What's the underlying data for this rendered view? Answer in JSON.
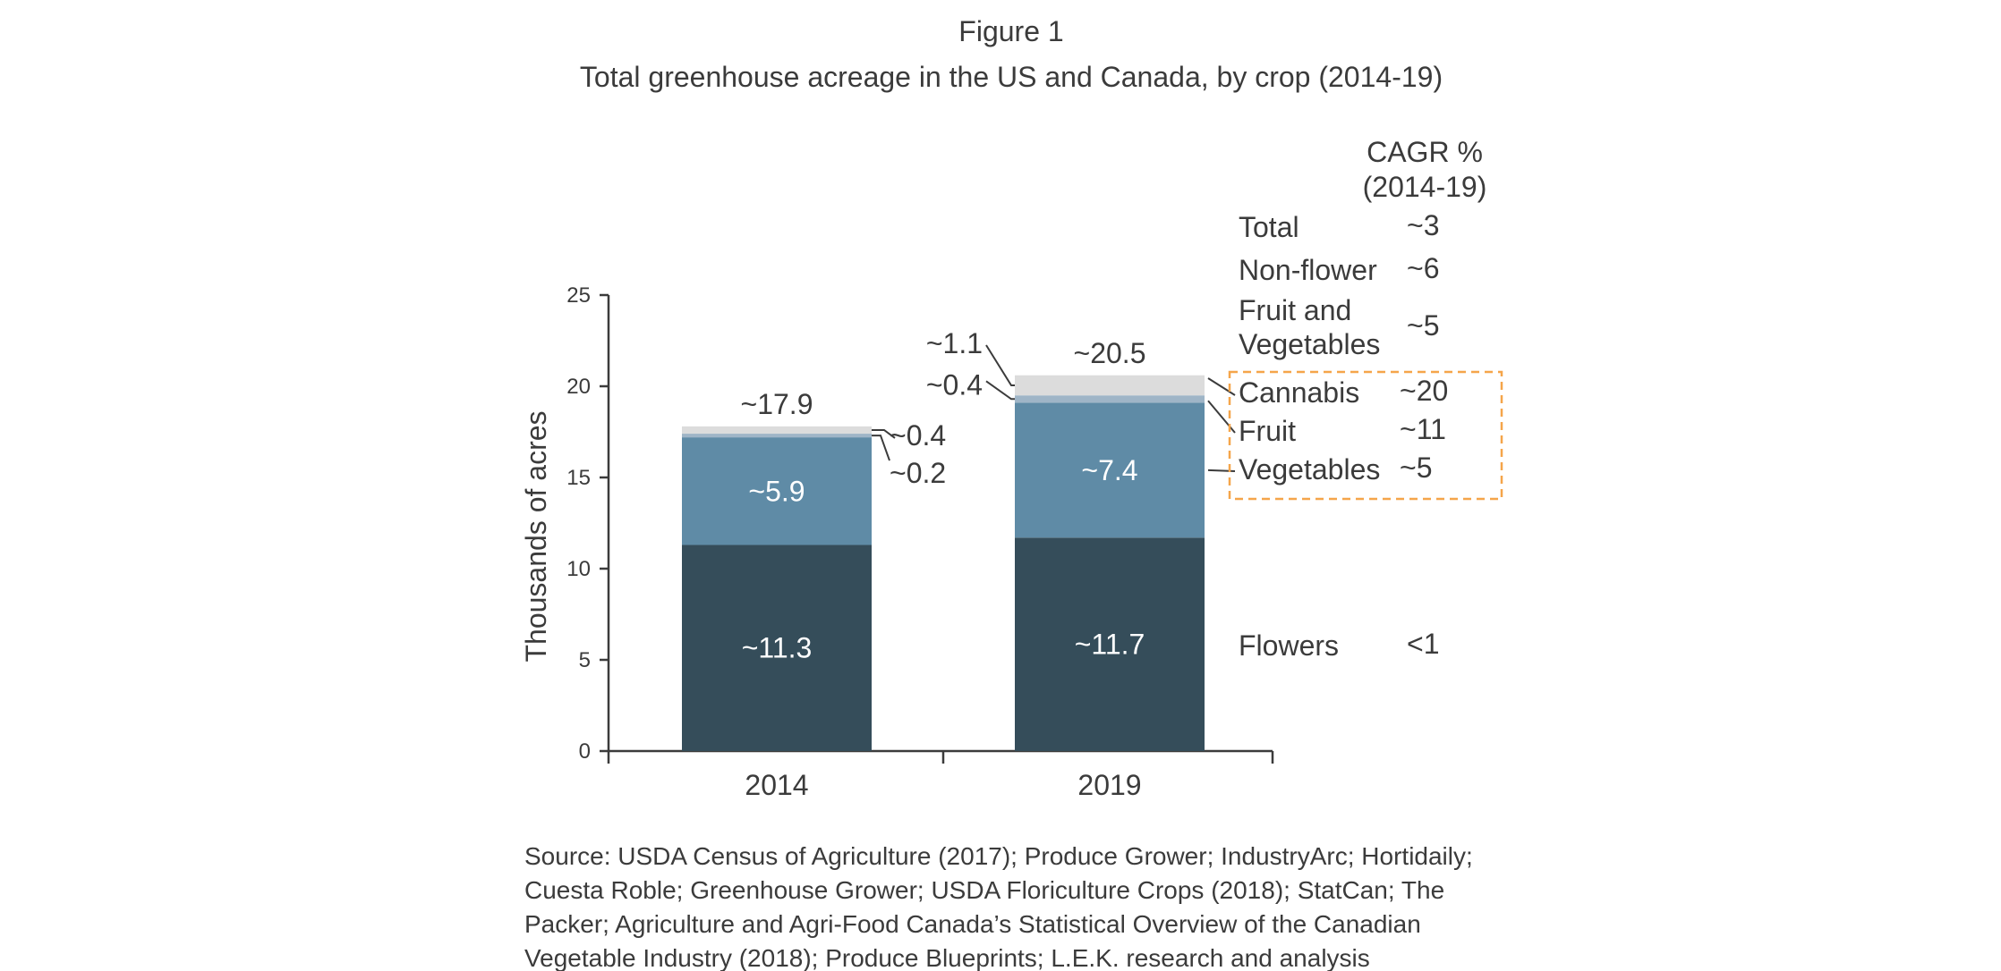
{
  "figure_label": "Figure 1",
  "title": "Total greenhouse acreage in the US and Canada, by crop (2014-19)",
  "source": [
    "Source: USDA Census of Agriculture (2017); Produce Grower; IndustryArc; Hortidaily;",
    "Cuesta Roble; Greenhouse Grower; USDA Floriculture Crops (2018); StatCan; The",
    "Packer; Agriculture and Agri-Food Canada’s Statistical Overview of the Canadian",
    "Vegetable Industry (2018); Produce Blueprints; L.E.K. research and analysis"
  ],
  "colors": {
    "flowers": "#354d5a",
    "vegetables": "#5f8ba6",
    "fruit": "#9fb5c7",
    "cannabis": "#dcdcdc",
    "highlight_box": "#f5a54a",
    "text": "#3b3b3b"
  },
  "chart_data": {
    "type": "bar",
    "stacked": true,
    "categories": [
      "2014",
      "2019"
    ],
    "ylabel": "Thousands of acres",
    "ylim": [
      0,
      25
    ],
    "yticks": [
      0,
      5,
      10,
      15,
      20,
      25
    ],
    "grid": false,
    "series": [
      {
        "name": "Flowers",
        "key": "flowers",
        "values": [
          11.3,
          11.7
        ],
        "labels": [
          "~11.3",
          "~11.7"
        ]
      },
      {
        "name": "Vegetables",
        "key": "vegetables",
        "values": [
          5.9,
          7.4
        ],
        "labels": [
          "~5.9",
          "~7.4"
        ]
      },
      {
        "name": "Fruit",
        "key": "fruit",
        "values": [
          0.2,
          0.4
        ],
        "labels": [
          "~0.2",
          "~0.4"
        ]
      },
      {
        "name": "Cannabis",
        "key": "cannabis",
        "values": [
          0.4,
          1.1
        ],
        "labels": [
          "~0.4",
          "~1.1"
        ]
      }
    ],
    "totals": [
      17.9,
      20.5
    ],
    "total_labels": [
      "~17.9",
      "~20.5"
    ],
    "cagr": {
      "header": [
        "CAGR %",
        "(2014-19)"
      ],
      "rows": [
        {
          "label": [
            "Total"
          ],
          "value": "~3"
        },
        {
          "label": [
            "Non-flower"
          ],
          "value": "~6"
        },
        {
          "label": [
            "Fruit and",
            "Vegetables"
          ],
          "value": "~5"
        },
        {
          "label": [
            "Cannabis"
          ],
          "value": "~20",
          "highlighted": true
        },
        {
          "label": [
            "Fruit"
          ],
          "value": "~11",
          "highlighted": true
        },
        {
          "label": [
            "Vegetables"
          ],
          "value": "~5",
          "highlighted": true
        },
        {
          "label": [
            "Flowers"
          ],
          "value": "<1"
        }
      ]
    }
  }
}
